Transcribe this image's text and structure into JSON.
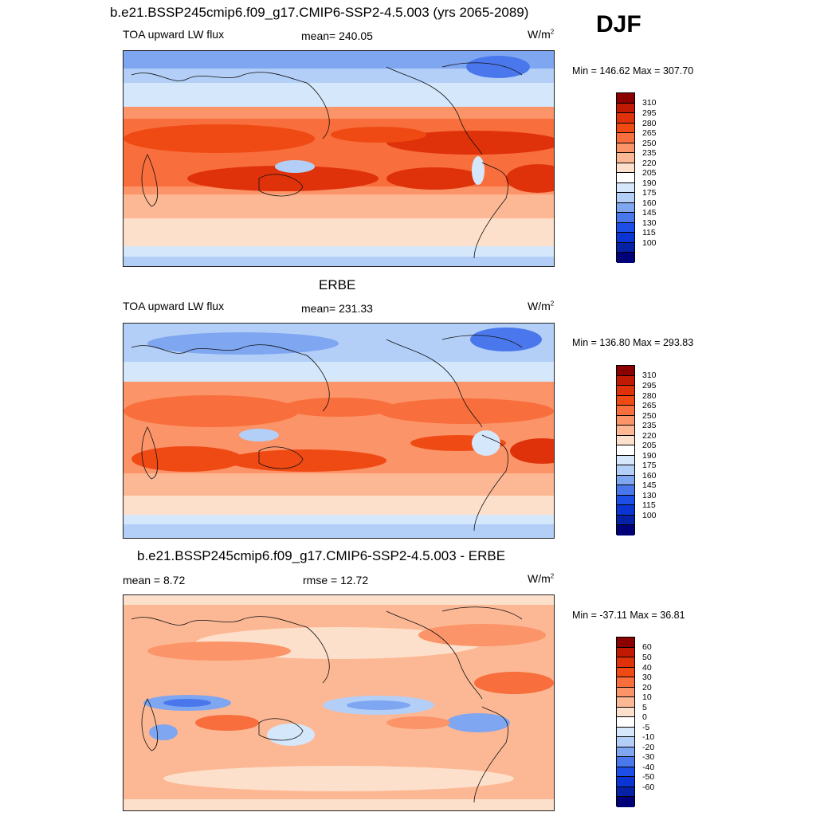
{
  "season": "DJF",
  "units_base": "W/m",
  "units_exp": "2",
  "panels": [
    {
      "title": "b.e21.BSSP245cmip6.f09_g17.CMIP6-SSP2-4.5.003 (yrs 2065-2089)",
      "left_label": "TOA upward LW flux",
      "center_label": "mean= 240.05",
      "minmax": "Min = 146.62 Max = 307.70"
    },
    {
      "title": "ERBE",
      "left_label": "TOA upward LW flux",
      "center_label": "mean= 231.33",
      "minmax": "Min = 136.80 Max = 293.83"
    },
    {
      "title": "b.e21.BSSP245cmip6.f09_g17.CMIP6-SSP2-4.5.003 - ERBE",
      "left_label": "mean =   8.72",
      "center_label": "rmse =  12.72",
      "minmax": "Min = -37.11 Max =  36.81"
    }
  ],
  "colorbar_abs": {
    "labels": [
      "310",
      "295",
      "280",
      "265",
      "250",
      "235",
      "220",
      "205",
      "190",
      "175",
      "160",
      "145",
      "130",
      "115",
      "100"
    ],
    "colors": [
      "#8b0000",
      "#c01a04",
      "#e0320a",
      "#f04a14",
      "#f86e3c",
      "#fb9468",
      "#fcb894",
      "#fde0cb",
      "#ffffff",
      "#d5e7fb",
      "#b3cff7",
      "#7ea6f1",
      "#4a78ec",
      "#1d4fe7",
      "#0b35d2",
      "#0521a6",
      "#000078"
    ]
  },
  "colorbar_diff": {
    "labels": [
      "60",
      "50",
      "40",
      "30",
      "20",
      "10",
      "5",
      "0",
      "-5",
      "-10",
      "-20",
      "-30",
      "-40",
      "-50",
      "-60"
    ],
    "colors": [
      "#8b0000",
      "#c01a04",
      "#e0320a",
      "#f04a14",
      "#f86e3c",
      "#fb9468",
      "#fcb894",
      "#fde0cb",
      "#ffffff",
      "#d5e7fb",
      "#b3cff7",
      "#7ea6f1",
      "#4a78ec",
      "#1d4fe7",
      "#0b35d2",
      "#0521a6",
      "#000078"
    ]
  }
}
